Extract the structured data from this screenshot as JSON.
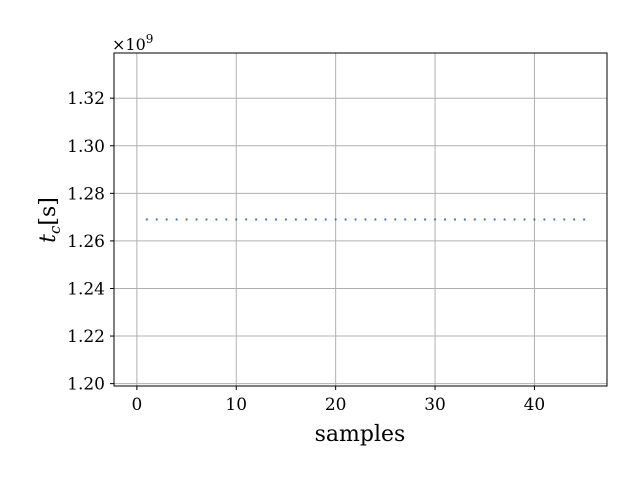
{
  "chart_data": {
    "type": "scatter",
    "title": "",
    "xlabel": "samples",
    "ylabel": "t_c [s]",
    "ylabel_main": "t",
    "ylabel_sub": "c",
    "ylabel_unit": "[s]",
    "y_offset_text": "×10",
    "y_offset_exp": "9",
    "xlim": [
      -2.3,
      47.3
    ],
    "ylim": [
      1.199,
      1.339
    ],
    "y_multiplier": 1000000000,
    "xticks": [
      0,
      10,
      20,
      30,
      40
    ],
    "xtick_labels": [
      "0",
      "10",
      "20",
      "30",
      "40"
    ],
    "yticks": [
      1.2,
      1.22,
      1.24,
      1.26,
      1.28,
      1.3,
      1.32
    ],
    "ytick_labels": [
      "1.20",
      "1.22",
      "1.24",
      "1.26",
      "1.28",
      "1.30",
      "1.32"
    ],
    "grid": true,
    "series": [
      {
        "color": "#4c72b0",
        "x": [
          1,
          2,
          3,
          4,
          5,
          6,
          7,
          8,
          9,
          10,
          11,
          12,
          13,
          14,
          15,
          16,
          17,
          18,
          19,
          20,
          21,
          22,
          23,
          24,
          25,
          26,
          27,
          28,
          29,
          30,
          31,
          32,
          33,
          34,
          35,
          36,
          37,
          38,
          39,
          40,
          41,
          42,
          43,
          44,
          45
        ],
        "y": [
          1.269,
          1.269,
          1.269,
          1.269,
          1.269,
          1.269,
          1.269,
          1.269,
          1.269,
          1.269,
          1.269,
          1.269,
          1.269,
          1.269,
          1.269,
          1.269,
          1.269,
          1.269,
          1.269,
          1.269,
          1.269,
          1.269,
          1.269,
          1.269,
          1.269,
          1.269,
          1.269,
          1.269,
          1.269,
          1.269,
          1.269,
          1.269,
          1.269,
          1.269,
          1.269,
          1.269,
          1.269,
          1.269,
          1.269,
          1.269,
          1.269,
          1.269,
          1.269,
          1.269,
          1.269
        ]
      }
    ]
  }
}
